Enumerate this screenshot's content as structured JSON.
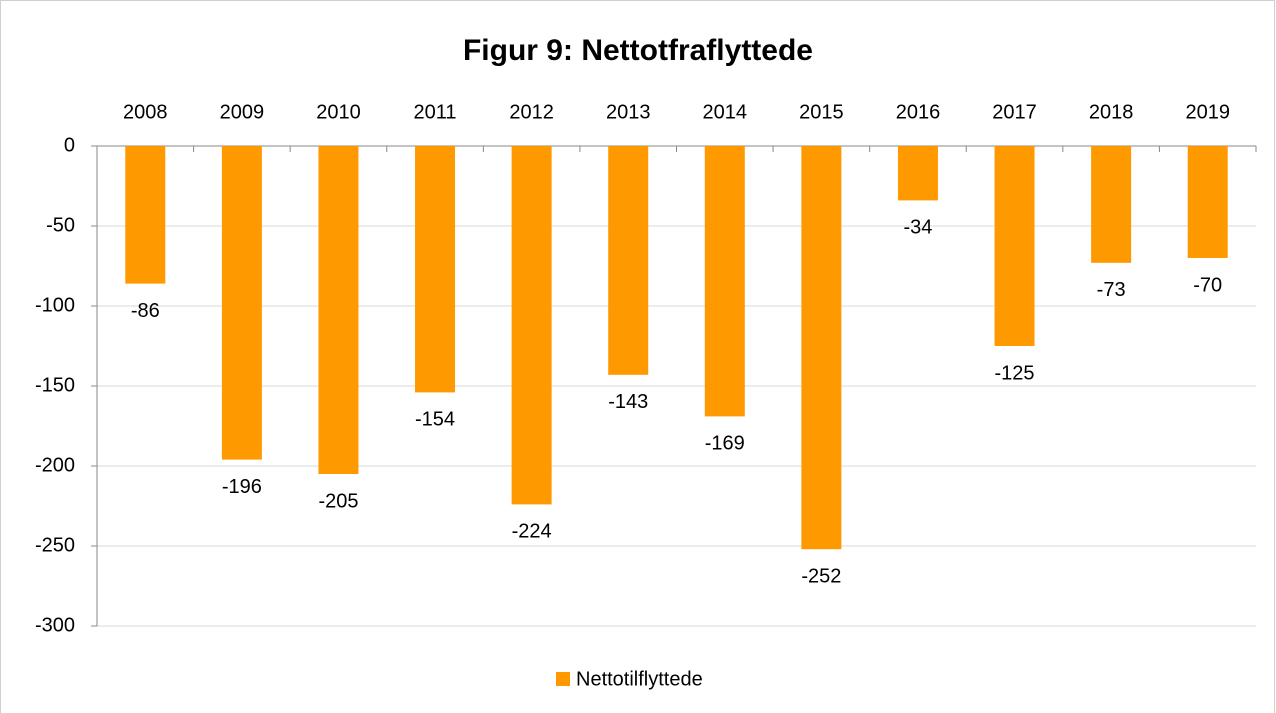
{
  "chart_data": {
    "type": "bar",
    "title": "Figur 9: Nettotfraflyttede",
    "categories": [
      "2008",
      "2009",
      "2010",
      "2011",
      "2012",
      "2013",
      "2014",
      "2015",
      "2016",
      "2017",
      "2018",
      "2019"
    ],
    "series": [
      {
        "name": "Nettotilflyttede",
        "color": "#ff9900",
        "values": [
          -86,
          -196,
          -205,
          -154,
          -224,
          -143,
          -169,
          -252,
          -34,
          -125,
          -73,
          -70
        ]
      }
    ],
    "ylim": [
      -300,
      0
    ],
    "yticks": [
      0,
      -50,
      -100,
      -150,
      -200,
      -250,
      -300
    ],
    "grid": true,
    "legend": "bottom",
    "data_labels": true
  }
}
